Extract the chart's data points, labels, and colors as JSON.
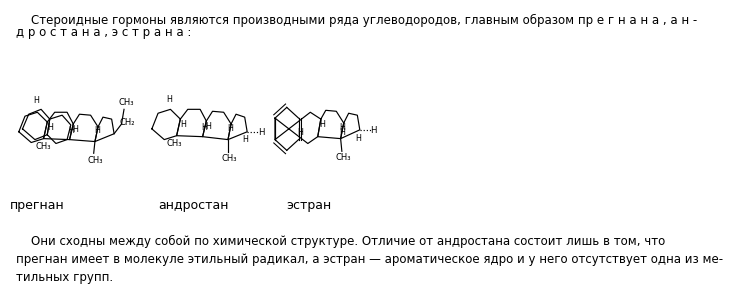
{
  "bg_color": "#ffffff",
  "top_text_line1": "    Стероидные гормоны являются производными ряда углеводородов, главным образом пр е г н а н а , а н -",
  "top_text_line2": "д р о с т а н а , э с т р а н а :",
  "bottom_text": "    Они сходны между собой по химической структуре. Отличие от андростана состоит лишь в том, что\nпрегнан имеет в молекуле этильный радикал, а эстран — ароматическое ядро и у него отсутствует одна из ме-\nтильных групп.",
  "label1": "прегнан",
  "label2": "андростан",
  "label3": "эстран",
  "fontsize_text": 8.5,
  "fontsize_label": 9,
  "text_color": "#000000"
}
